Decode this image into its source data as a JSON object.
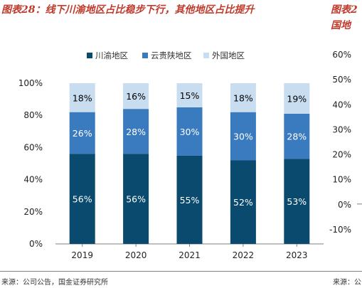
{
  "title": "图表28：线下川渝地区占比稳步下行，其他地区占比提升",
  "right_title": "图表2\n国地",
  "source": "来源：公司公告，国金证券研究所",
  "right_source": "来源：公",
  "colors": {
    "series": [
      "#0a4a6e",
      "#3a7bc0",
      "#c9ddf0"
    ],
    "axis": "#7f7f7f",
    "label_dark": "#ffffff",
    "label_light": "#000000"
  },
  "chart_data": [
    {
      "type": "bar",
      "stacked": true,
      "categories": [
        "2019",
        "2020",
        "2021",
        "2022",
        "2023"
      ],
      "series": [
        {
          "name": "川渝地区",
          "values": [
            56,
            56,
            55,
            52,
            53
          ],
          "labels": [
            "56%",
            "56%",
            "55%",
            "52%",
            "53%"
          ]
        },
        {
          "name": "云贵陕地区",
          "values": [
            26,
            28,
            30,
            30,
            28
          ],
          "labels": [
            "26%",
            "28%",
            "30%",
            "30%",
            "28%"
          ]
        },
        {
          "name": "外国地区",
          "values": [
            18,
            16,
            15,
            18,
            19
          ],
          "labels": [
            "18%",
            "16%",
            "15%",
            "18%",
            "19%"
          ]
        }
      ],
      "ylim": [
        0,
        100
      ],
      "yticks": [
        "0%",
        "20%",
        "40%",
        "60%",
        "80%",
        "100%"
      ],
      "grid": false,
      "legend": "top"
    },
    {
      "type": "line",
      "ylim": [
        -10,
        60
      ],
      "yticks": [
        "60%",
        "50%",
        "40%",
        "30%",
        "20%",
        "10%",
        "0%",
        "-10%"
      ],
      "grid": false
    }
  ]
}
